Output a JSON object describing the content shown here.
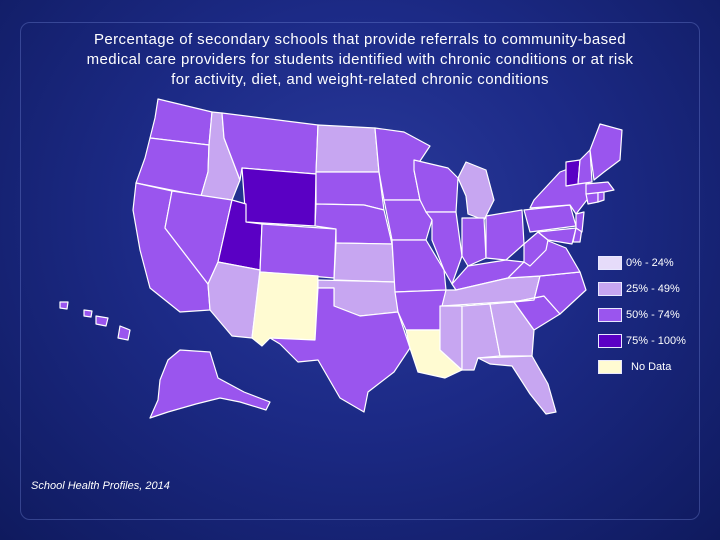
{
  "title_lines": [
    "Percentage of secondary schools that provide referrals to community-based",
    "medical care providers for students identified with chronic conditions or at risk",
    "for activity, diet, and weight-related chronic conditions"
  ],
  "legend": [
    {
      "label": "0% - 24%",
      "color": "#e6dcfa"
    },
    {
      "label": "25% - 49%",
      "color": "#c7a6f1"
    },
    {
      "label": "50% - 74%",
      "color": "#9a55ee"
    },
    {
      "label": "75% - 100%",
      "color": "#5a00c4"
    },
    {
      "label": "No Data",
      "color": "#fffbd2"
    }
  ],
  "source": "School Health Profiles, 2014"
}
